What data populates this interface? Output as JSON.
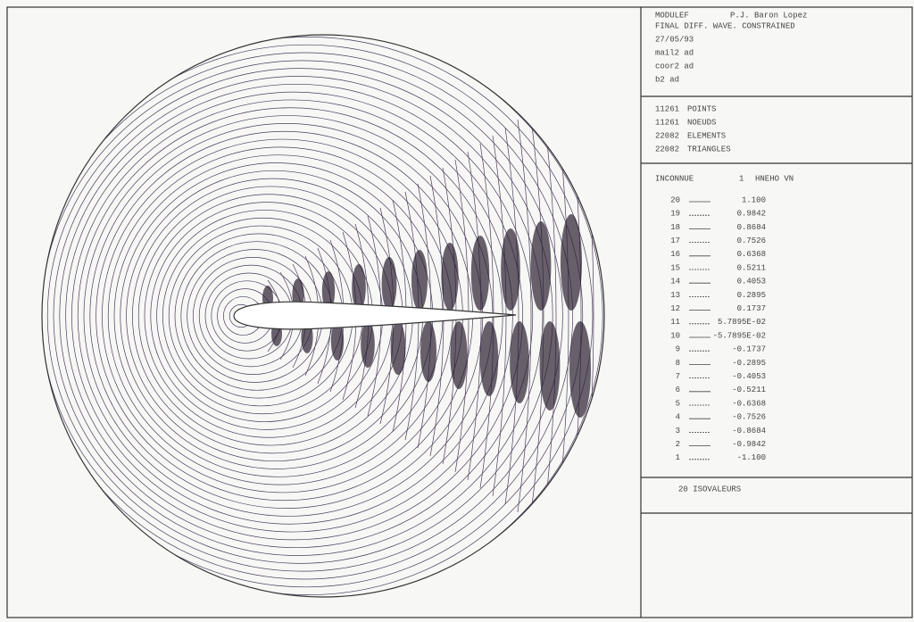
{
  "header": {
    "lines": [
      "MODULEF",
      "P.J. Baron Lopez",
      "FINAL DIFF. WAVE. CONSTRAINED",
      "27/05/93",
      "mail2 ad",
      "coor2 ad",
      "b2 ad"
    ]
  },
  "stats": [
    [
      "11261",
      "POINTS"
    ],
    [
      "11261",
      "NOEUDS"
    ],
    [
      "22082",
      "ELEMENTS"
    ],
    [
      "22082",
      "TRIANGLES"
    ]
  ],
  "legend": {
    "title": [
      "INCONNUE",
      "1",
      "HNEHO VN"
    ],
    "rows": [
      [
        "20",
        "1.100"
      ],
      [
        "19",
        "0.9842"
      ],
      [
        "18",
        "0.8684"
      ],
      [
        "17",
        "0.7526"
      ],
      [
        "16",
        "0.6368"
      ],
      [
        "15",
        "0.5211"
      ],
      [
        "14",
        "0.4053"
      ],
      [
        "13",
        "0.2895"
      ],
      [
        "12",
        "0.1737"
      ],
      [
        "11",
        "5.7895E-02"
      ],
      [
        "10",
        "-5.7895E-02"
      ],
      [
        "9",
        "-0.1737"
      ],
      [
        "8",
        "-0.2895"
      ],
      [
        "7",
        "-0.4053"
      ],
      [
        "6",
        "-0.5211"
      ],
      [
        "5",
        "-0.6368"
      ],
      [
        "4",
        "-0.7526"
      ],
      [
        "3",
        "-0.8684"
      ],
      [
        "2",
        "-0.9842"
      ],
      [
        "1",
        "-1.100"
      ]
    ]
  },
  "footer": {
    "text": "20 ISOVALEURS"
  }
}
